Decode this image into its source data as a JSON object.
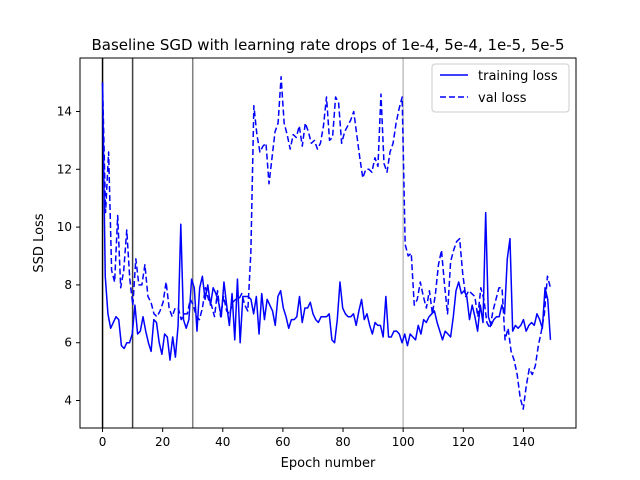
{
  "chart_data": {
    "type": "line",
    "title": "Baseline SGD with learning rate drops of 1e-4, 5e-4, 1e-5, 5e-5",
    "xlabel": "Epoch number",
    "ylabel": "SSD Loss",
    "xlim": [
      -7.5,
      157.5
    ],
    "ylim": [
      3.05,
      15.85
    ],
    "xticks": [
      0,
      20,
      40,
      60,
      80,
      100,
      120,
      140
    ],
    "yticks": [
      4,
      6,
      8,
      10,
      12,
      14
    ],
    "grid": false,
    "legend": {
      "position": "top-right"
    },
    "vlines": [
      {
        "x": 0,
        "color": "#000000"
      },
      {
        "x": 10,
        "color": "#404040"
      },
      {
        "x": 30,
        "color": "#808080"
      },
      {
        "x": 100,
        "color": "#c0c0c0"
      }
    ],
    "series": [
      {
        "name": "training loss",
        "color": "#0000ff",
        "style": "solid",
        "values": [
          15.0,
          8.3,
          7.0,
          6.5,
          6.7,
          6.9,
          6.8,
          5.9,
          5.8,
          6.0,
          6.0,
          6.3,
          7.3,
          6.3,
          6.4,
          6.9,
          6.4,
          6.0,
          5.7,
          6.8,
          6.7,
          6.0,
          5.6,
          6.3,
          6.2,
          5.4,
          6.2,
          5.5,
          6.6,
          10.1,
          6.8,
          6.5,
          6.8,
          8.2,
          7.9,
          6.4,
          7.9,
          8.3,
          7.5,
          8.0,
          7.3,
          7.9,
          7.7,
          7.4,
          6.9,
          8.1,
          7.3,
          6.6,
          7.7,
          6.1,
          8.2,
          6.0,
          7.6,
          7.6,
          7.6,
          7.5,
          7.0,
          7.6,
          6.3,
          7.7,
          6.8,
          7.5,
          7.3,
          7.1,
          6.6,
          7.6,
          7.8,
          7.2,
          6.9,
          6.5,
          6.8,
          6.8,
          6.9,
          7.6,
          6.7,
          7.2,
          7.2,
          7.4,
          7.0,
          6.8,
          6.7,
          6.9,
          6.9,
          6.9,
          7.0,
          6.1,
          6.0,
          6.8,
          8.1,
          7.2,
          7.0,
          6.9,
          6.9,
          7.0,
          6.6,
          7.1,
          7.5,
          6.8,
          7.0,
          6.6,
          6.3,
          6.7,
          6.6,
          6.6,
          6.2,
          7.6,
          6.2,
          6.2,
          6.4,
          6.4,
          6.3,
          6.0,
          6.3,
          5.9,
          6.3,
          6.2,
          6.1,
          6.6,
          6.3,
          6.8,
          6.7,
          6.9,
          7.0,
          7.1,
          6.7,
          6.4,
          6.1,
          6.4,
          6.3,
          6.2,
          6.9,
          7.8,
          8.1,
          7.7,
          7.8,
          7.6,
          6.8,
          7.3,
          6.9,
          6.4,
          7.3,
          6.7,
          10.5,
          6.9,
          6.6,
          6.8,
          6.9,
          6.9,
          7.3,
          7.0,
          8.9,
          9.6,
          6.4,
          6.6,
          6.5,
          6.6,
          6.8,
          6.4,
          6.6,
          6.7,
          6.6,
          7.0,
          6.8,
          6.5,
          7.9,
          7.5,
          6.1
        ],
        "x_start": 0,
        "x_end": 149
      },
      {
        "name": "val loss",
        "color": "#0000ff",
        "style": "dashed",
        "values": [
          15.0,
          10.5,
          12.6,
          8.5,
          8.1,
          10.4,
          7.9,
          8.5,
          9.9,
          8.2,
          7.3,
          8.9,
          8.0,
          8.0,
          8.7,
          7.6,
          7.4,
          7.0,
          6.9,
          7.1,
          7.4,
          8.1,
          7.2,
          6.9,
          7.2,
          7.2,
          6.8,
          7.0,
          7.0,
          7.5,
          7.3,
          6.9,
          6.8,
          7.2,
          7.9,
          7.5,
          7.3,
          6.9,
          7.8,
          6.9,
          7.6,
          7.1,
          7.0,
          7.4,
          7.5,
          7.5,
          7.7,
          7.3,
          7.1,
          9.1,
          14.2,
          13.2,
          12.6,
          12.8,
          12.9,
          11.5,
          12.4,
          13.3,
          13.6,
          15.2,
          13.6,
          13.2,
          12.7,
          13.2,
          13.1,
          13.5,
          12.8,
          13.6,
          13.3,
          12.9,
          13.0,
          12.7,
          12.9,
          13.5,
          14.5,
          13.0,
          13.1,
          14.5,
          14.3,
          12.9,
          13.3,
          13.5,
          13.7,
          14.0,
          13.2,
          12.4,
          11.7,
          12.0,
          12.0,
          11.9,
          12.4,
          12.1,
          14.6,
          12.2,
          11.9,
          12.6,
          12.9,
          13.6,
          14.1,
          14.5,
          9.4,
          9.0,
          9.1,
          7.3,
          7.5,
          8.1,
          7.6,
          7.2,
          7.8,
          7.0,
          7.7,
          8.7,
          9.2,
          8.0,
          7.0,
          8.8,
          9.2,
          9.5,
          9.6,
          8.4,
          7.6,
          7.8,
          7.7,
          7.6,
          6.9,
          7.9,
          7.5,
          6.7,
          6.5,
          7.1,
          7.5,
          7.9,
          7.9,
          6.1,
          6.5,
          5.7,
          5.4,
          4.9,
          4.1,
          3.7,
          4.5,
          5.1,
          4.9,
          5.2,
          5.9,
          6.4,
          7.0,
          8.3,
          7.9
        ],
        "x_start": 0,
        "x_end": 149
      }
    ]
  }
}
